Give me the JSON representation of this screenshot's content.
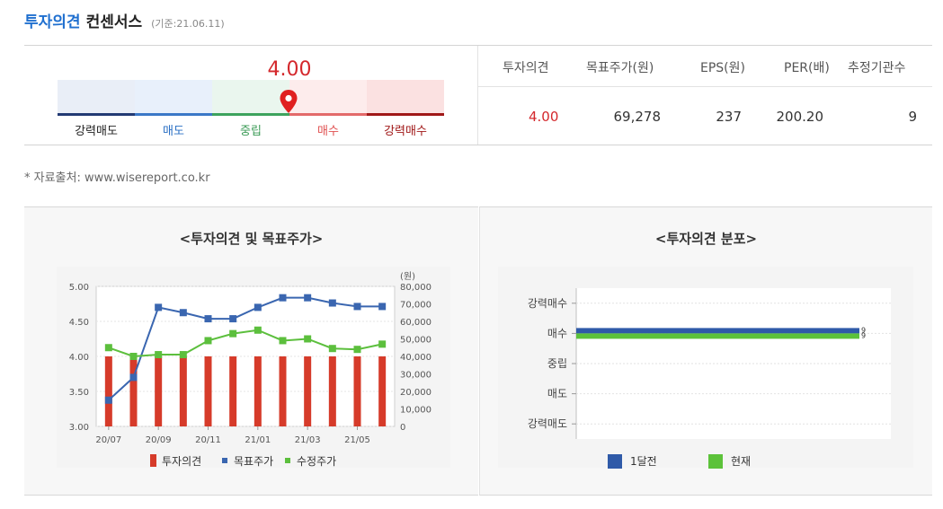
{
  "header": {
    "title_blue": "투자의견",
    "title_black": "컨센서스",
    "date": "(기준:21.06.11)"
  },
  "gauge": {
    "value": "4.00",
    "segments": [
      {
        "label": "강력매도",
        "bg": "#e9eef7",
        "line": "#233a73",
        "text": "#222222"
      },
      {
        "label": "매도",
        "bg": "#e8f0fb",
        "line": "#3b78c7",
        "text": "#2a6fc4"
      },
      {
        "label": "중립",
        "bg": "#eaf6ee",
        "line": "#3da35d",
        "text": "#3a9a55"
      },
      {
        "label": "매수",
        "bg": "#fdecec",
        "line": "#e36a6a",
        "text": "#e05050"
      },
      {
        "label": "강력매수",
        "bg": "#fbe1e1",
        "line": "#a01818",
        "text": "#a01818"
      }
    ]
  },
  "table": {
    "headers": [
      "투자의견",
      "목표주가(원)",
      "EPS(원)",
      "PER(배)",
      "추정기관수"
    ],
    "values": [
      "4.00",
      "69,278",
      "237",
      "200.20",
      "9"
    ]
  },
  "source": "* 자료출처: www.wisereport.co.kr",
  "chart_data": [
    {
      "type": "bar",
      "title": "<투자의견 및 목표주가>",
      "categories": [
        "20/07",
        "",
        "20/09",
        "",
        "20/11",
        "",
        "21/01",
        "",
        "21/03",
        "",
        "21/05",
        ""
      ],
      "xtick_labels": [
        "20/07",
        "20/09",
        "20/11",
        "21/01",
        "21/03",
        "21/05"
      ],
      "y_left": {
        "ylim": [
          3.0,
          5.0
        ],
        "ticks": [
          "5.00",
          "4.50",
          "4.00",
          "3.50",
          "3.00"
        ]
      },
      "y_right": {
        "ylim": [
          0,
          80000
        ],
        "unit": "(원)",
        "ticks": [
          "80,000",
          "70,000",
          "60,000",
          "50,000",
          "40,000",
          "30,000",
          "20,000",
          "10,000",
          "0"
        ]
      },
      "series": [
        {
          "name": "투자의견",
          "kind": "bar",
          "axis": "left",
          "color": "#d63b2a",
          "values": [
            4.0,
            4.0,
            4.0,
            4.0,
            4.0,
            4.0,
            4.0,
            4.0,
            4.0,
            4.0,
            4.0,
            4.0
          ]
        },
        {
          "name": "목표주가",
          "kind": "line",
          "axis": "right",
          "color": "#3a66b0",
          "values": [
            15000,
            28000,
            68000,
            65000,
            61500,
            61500,
            68000,
            73500,
            73500,
            70500,
            68500,
            68500
          ]
        },
        {
          "name": "수정주가",
          "kind": "line",
          "axis": "right",
          "color": "#5cbf3d",
          "values": [
            45000,
            40000,
            41000,
            41000,
            49000,
            53000,
            55000,
            49000,
            50000,
            44500,
            44000,
            47000
          ]
        }
      ],
      "grid": true
    },
    {
      "type": "bar",
      "orientation": "horizontal",
      "title": "<투자의견 분포>",
      "categories": [
        "강력매수",
        "매수",
        "중립",
        "매도",
        "강력매도"
      ],
      "series": [
        {
          "name": "1달전",
          "color": "#2f5aa8",
          "values": [
            0,
            9,
            0,
            0,
            0
          ],
          "labels": [
            "",
            "9",
            "",
            "",
            ""
          ]
        },
        {
          "name": "현재",
          "color": "#5cc23a",
          "values": [
            0,
            9,
            0,
            0,
            0
          ],
          "labels": [
            "",
            "9",
            "",
            "",
            ""
          ]
        }
      ],
      "xlim": [
        0,
        10
      ],
      "grid": true,
      "legend": "bottom"
    }
  ]
}
